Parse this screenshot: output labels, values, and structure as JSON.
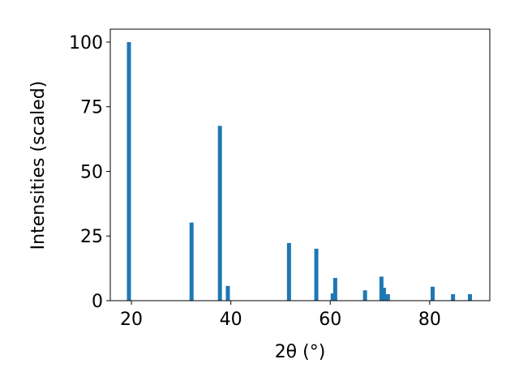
{
  "chart_data": {
    "type": "bar",
    "x_label": "2θ (°)",
    "y_label": "Intensities (scaled)",
    "x": [
      19.5,
      32.1,
      37.8,
      39.4,
      51.7,
      57.2,
      60.5,
      61.0,
      67.0,
      70.3,
      70.8,
      71.6,
      80.6,
      84.7,
      88.1
    ],
    "values": [
      100,
      30.2,
      67.6,
      5.7,
      22.3,
      20.1,
      2.8,
      8.8,
      4.0,
      9.3,
      5.0,
      2.5,
      5.4,
      2.5,
      2.5
    ],
    "color": "#1f77b4",
    "xlim": [
      15.75,
      92.1
    ],
    "ylim": [
      0,
      105
    ],
    "xticks": [
      20,
      40,
      60,
      80
    ],
    "yticks": [
      0,
      25,
      50,
      75,
      100
    ]
  }
}
